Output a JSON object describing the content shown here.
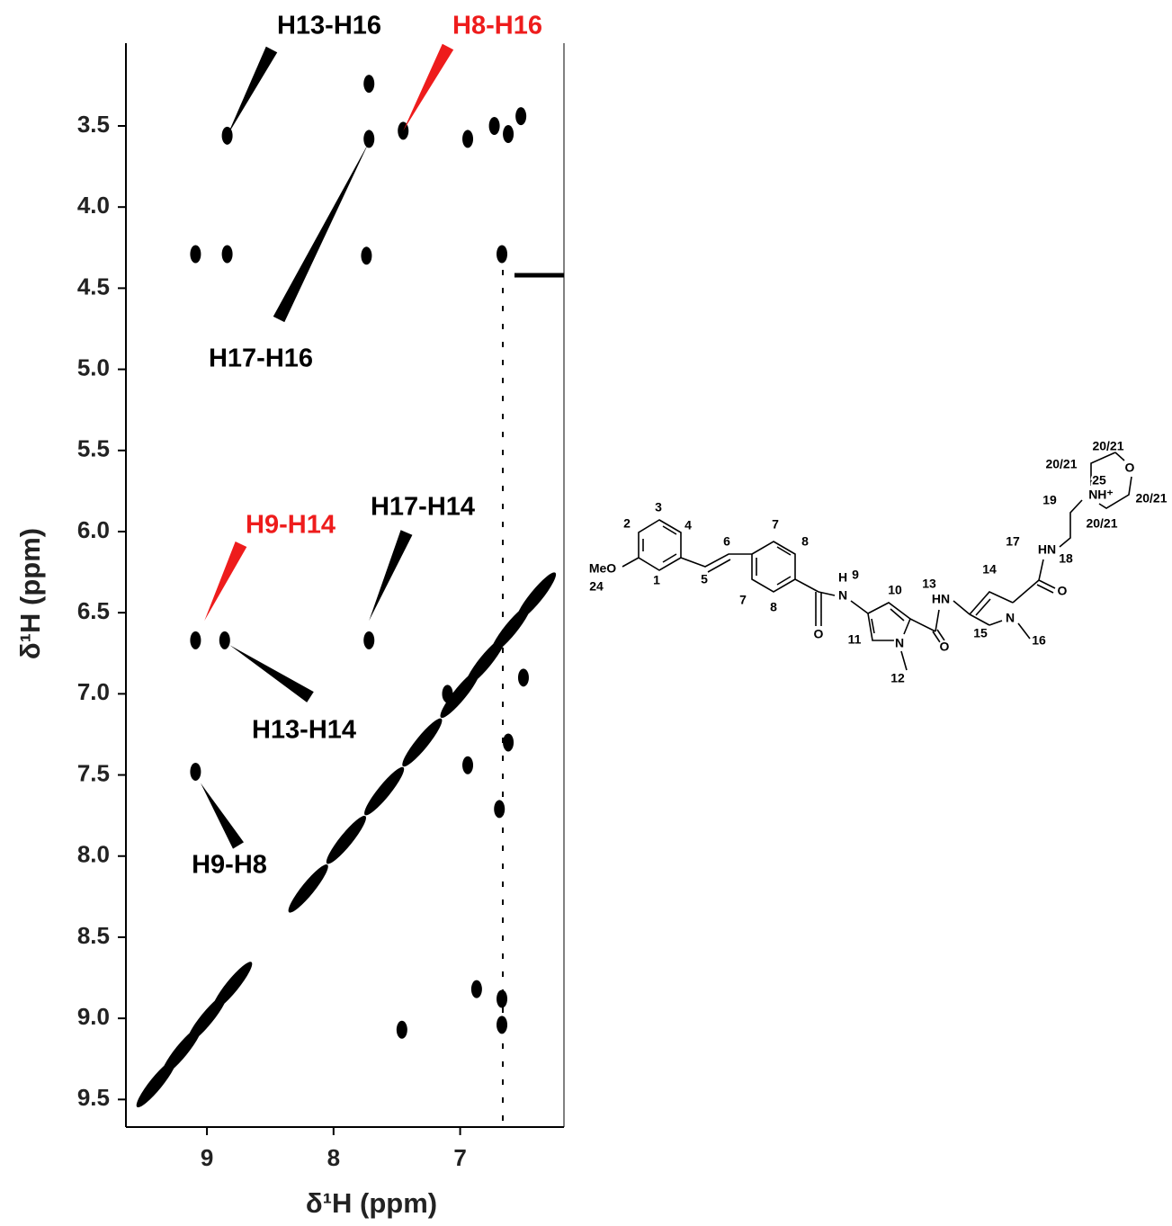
{
  "chart_data": {
    "type": "scatter",
    "x_label": "δ¹H (ppm)",
    "y_label": "δ¹H (ppm)",
    "xlim": [
      9.64,
      6.18
    ],
    "ylim": [
      2.99,
      9.67
    ],
    "xticks": [
      9,
      8,
      7
    ],
    "yticks": [
      3.5,
      {
        "value": 4,
        "label": "4.0"
      },
      4.5,
      {
        "value": 5,
        "label": "5.0"
      },
      5.5,
      {
        "value": 6,
        "label": "6.0"
      },
      6.5,
      {
        "value": 7,
        "label": "7.0"
      },
      7.5,
      {
        "value": 8,
        "label": "8.0"
      },
      8.5,
      {
        "value": 9,
        "label": "9.0"
      },
      9.5
    ],
    "color": "#000000",
    "x": [
      8.84,
      7.45,
      7.72,
      7.72,
      6.73,
      6.52,
      6.94,
      6.62,
      9.09,
      8.84,
      7.74,
      6.67,
      9.09,
      8.86,
      7.72,
      9.09,
      9.4,
      9.2,
      9.0,
      8.8,
      8.2,
      7.9,
      7.6,
      7.3,
      7.0,
      6.8,
      6.6,
      6.4,
      7.46,
      6.87,
      6.67,
      6.67,
      6.69,
      6.94,
      7.1,
      6.62,
      6.5
    ],
    "y": [
      3.56,
      3.53,
      3.58,
      3.24,
      3.5,
      3.44,
      3.58,
      3.55,
      4.29,
      4.29,
      4.3,
      4.29,
      6.67,
      6.67,
      6.67,
      7.48,
      9.4,
      9.2,
      9.0,
      8.8,
      8.2,
      7.9,
      7.6,
      7.3,
      7.0,
      6.8,
      6.6,
      6.4,
      9.07,
      8.82,
      8.88,
      9.04,
      7.71,
      7.44,
      7.0,
      7.3,
      6.9
    ],
    "annotations": [
      {
        "text": "H13-H16",
        "color": "#000000",
        "x": 8.84,
        "y": 3.56
      },
      {
        "text": "H8-H16",
        "color": "#ee1c1c",
        "x": 7.45,
        "y": 3.53
      },
      {
        "text": "H17-H16",
        "color": "#000000",
        "x": 7.72,
        "y": 3.6
      },
      {
        "text": "H9-H14",
        "color": "#ee1c1c",
        "x": 9.02,
        "y": 6.55
      },
      {
        "text": "H17-H14",
        "color": "#000000",
        "x": 7.72,
        "y": 6.55
      },
      {
        "text": "H13-H14",
        "color": "#000000",
        "x": 8.82,
        "y": 6.7
      },
      {
        "text": "H9-H8",
        "color": "#000000",
        "x": 9.05,
        "y": 7.55
      }
    ]
  },
  "structure": {
    "labels": [
      "3",
      "2",
      "4",
      "MeO",
      "1",
      "24",
      "6",
      "5",
      "7",
      "8",
      "7",
      "8",
      "O",
      "H",
      "N",
      "9",
      "10",
      "11",
      "N",
      "12",
      "O",
      "HN",
      "13",
      "14",
      "15",
      "N",
      "16",
      "O",
      "HN",
      "17",
      "18",
      "19",
      "NH⁺",
      "25",
      "O",
      "20/21",
      "20/21",
      "20/21",
      "20/21"
    ]
  }
}
